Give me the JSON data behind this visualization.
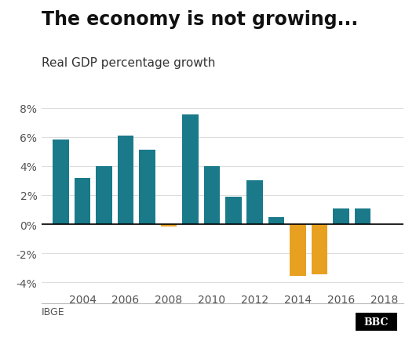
{
  "title": "The economy is not growing...",
  "subtitle": "Real GDP percentage growth",
  "years": [
    2003,
    2004,
    2005,
    2006,
    2007,
    2008,
    2009,
    2010,
    2011,
    2012,
    2013,
    2014,
    2015,
    2016,
    2017,
    2018
  ],
  "values": [
    5.85,
    3.2,
    4.0,
    6.1,
    5.1,
    -0.13,
    7.53,
    4.0,
    1.9,
    3.0,
    0.5,
    -3.55,
    -3.46,
    1.1,
    1.1,
    0.0
  ],
  "colors": [
    "#1a7a8a",
    "#1a7a8a",
    "#1a7a8a",
    "#1a7a8a",
    "#1a7a8a",
    "#e8a020",
    "#1a7a8a",
    "#1a7a8a",
    "#1a7a8a",
    "#1a7a8a",
    "#1a7a8a",
    "#e8a020",
    "#e8a020",
    "#1a7a8a",
    "#1a7a8a",
    "#1a7a8a"
  ],
  "ylim": [
    -4.5,
    8.5
  ],
  "yticks": [
    -4,
    -2,
    0,
    2,
    4,
    6,
    8
  ],
  "xtick_years": [
    2004,
    2006,
    2008,
    2010,
    2012,
    2014,
    2016,
    2018
  ],
  "source_label": "IBGE",
  "logo_label": "BBC",
  "background_color": "#ffffff",
  "bar_width": 0.75,
  "title_fontsize": 17,
  "subtitle_fontsize": 11,
  "tick_fontsize": 10
}
